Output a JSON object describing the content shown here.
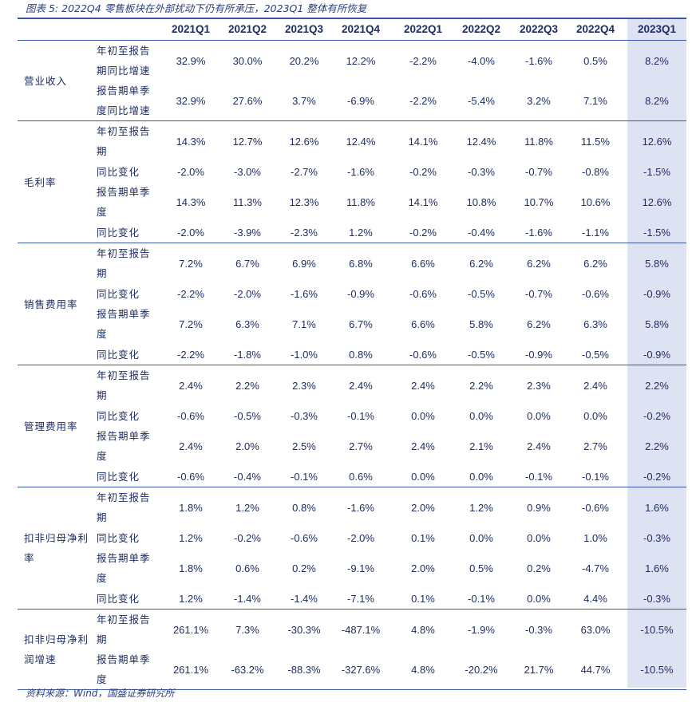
{
  "caption": "图表 5:  2022Q4 零售板块在外部扰动下仍有所承压，2023Q1 整体有所恢复",
  "footer": "资料来源：Wind，国盛证券研究所",
  "columns": [
    "2021Q1",
    "2021Q2",
    "2021Q3",
    "2021Q4",
    "2022Q1",
    "2022Q2",
    "2022Q3",
    "2022Q4",
    "2023Q1"
  ],
  "groups": [
    {
      "name": "营业收入",
      "rows": [
        {
          "label": "年初至报告期同比增速",
          "values": [
            "32.9%",
            "30.0%",
            "20.2%",
            "12.2%",
            "-2.2%",
            "-4.0%",
            "-1.6%",
            "0.5%",
            "8.2%"
          ]
        },
        {
          "label": "报告期单季度同比增速",
          "values": [
            "32.9%",
            "27.6%",
            "3.7%",
            "-6.9%",
            "-2.2%",
            "-5.4%",
            "3.2%",
            "7.1%",
            "8.2%"
          ]
        }
      ]
    },
    {
      "name": "毛利率",
      "rows": [
        {
          "label": "年初至报告期",
          "values": [
            "14.3%",
            "12.7%",
            "12.6%",
            "12.4%",
            "14.1%",
            "12.4%",
            "11.8%",
            "11.5%",
            "12.6%"
          ]
        },
        {
          "label": "同比变化",
          "values": [
            "-2.0%",
            "-3.0%",
            "-2.7%",
            "-1.6%",
            "-0.2%",
            "-0.3%",
            "-0.7%",
            "-0.8%",
            "-1.5%"
          ]
        },
        {
          "label": "报告期单季度",
          "values": [
            "14.3%",
            "11.3%",
            "12.3%",
            "11.8%",
            "14.1%",
            "10.8%",
            "10.7%",
            "10.6%",
            "12.6%"
          ]
        },
        {
          "label": "同比变化",
          "values": [
            "-2.0%",
            "-3.9%",
            "-2.3%",
            "1.2%",
            "-0.2%",
            "-0.4%",
            "-1.6%",
            "-1.1%",
            "-1.5%"
          ]
        }
      ]
    },
    {
      "name": "销售费用率",
      "rows": [
        {
          "label": "年初至报告期",
          "values": [
            "7.2%",
            "6.7%",
            "6.9%",
            "6.8%",
            "6.6%",
            "6.2%",
            "6.2%",
            "6.2%",
            "5.8%"
          ]
        },
        {
          "label": "同比变化",
          "values": [
            "-2.2%",
            "-2.0%",
            "-1.6%",
            "-0.9%",
            "-0.6%",
            "-0.5%",
            "-0.7%",
            "-0.6%",
            "-0.9%"
          ]
        },
        {
          "label": "报告期单季度",
          "values": [
            "7.2%",
            "6.3%",
            "7.1%",
            "6.7%",
            "6.6%",
            "5.8%",
            "6.2%",
            "6.3%",
            "5.8%"
          ]
        },
        {
          "label": "同比变化",
          "values": [
            "-2.2%",
            "-1.8%",
            "-1.0%",
            "0.8%",
            "-0.6%",
            "-0.5%",
            "-0.9%",
            "-0.5%",
            "-0.9%"
          ]
        }
      ]
    },
    {
      "name": "管理费用率",
      "rows": [
        {
          "label": "年初至报告期",
          "values": [
            "2.4%",
            "2.2%",
            "2.3%",
            "2.4%",
            "2.4%",
            "2.2%",
            "2.3%",
            "2.4%",
            "2.2%"
          ]
        },
        {
          "label": "同比变化",
          "values": [
            "-0.6%",
            "-0.5%",
            "-0.3%",
            "-0.1%",
            "0.0%",
            "0.0%",
            "0.0%",
            "0.0%",
            "-0.2%"
          ]
        },
        {
          "label": "报告期单季度",
          "values": [
            "2.4%",
            "2.0%",
            "2.5%",
            "2.7%",
            "2.4%",
            "2.1%",
            "2.4%",
            "2.7%",
            "2.2%"
          ]
        },
        {
          "label": "同比变化",
          "values": [
            "-0.6%",
            "-0.4%",
            "-0.1%",
            "0.6%",
            "0.0%",
            "0.0%",
            "-0.1%",
            "-0.1%",
            "-0.2%"
          ]
        }
      ]
    },
    {
      "name": "扣非归母净利率",
      "rows": [
        {
          "label": "年初至报告期",
          "values": [
            "1.8%",
            "1.2%",
            "0.8%",
            "-1.6%",
            "2.0%",
            "1.2%",
            "0.9%",
            "-0.6%",
            "1.6%"
          ]
        },
        {
          "label": "同比变化",
          "values": [
            "1.2%",
            "-0.2%",
            "-0.6%",
            "-2.0%",
            "0.1%",
            "0.0%",
            "0.0%",
            "1.0%",
            "-0.3%"
          ]
        },
        {
          "label": "报告期单季度",
          "values": [
            "1.8%",
            "0.6%",
            "0.2%",
            "-9.1%",
            "2.0%",
            "0.5%",
            "0.2%",
            "-4.7%",
            "1.6%"
          ]
        },
        {
          "label": "同比变化",
          "values": [
            "1.2%",
            "-1.4%",
            "-1.4%",
            "-7.1%",
            "0.1%",
            "-0.1%",
            "0.0%",
            "4.4%",
            "-0.3%"
          ]
        }
      ]
    },
    {
      "name": "扣非归母净利润增速",
      "rows": [
        {
          "label": "年初至报告期",
          "values": [
            "261.1%",
            "7.3%",
            "-30.3%",
            "-487.1%",
            "4.8%",
            "-1.9%",
            "-0.3%",
            "63.0%",
            "-10.5%"
          ]
        },
        {
          "label": "报告期单季度",
          "values": [
            "261.1%",
            "-63.2%",
            "-88.3%",
            "-327.6%",
            "4.8%",
            "-20.2%",
            "21.7%",
            "44.7%",
            "-10.5%"
          ]
        }
      ]
    }
  ]
}
